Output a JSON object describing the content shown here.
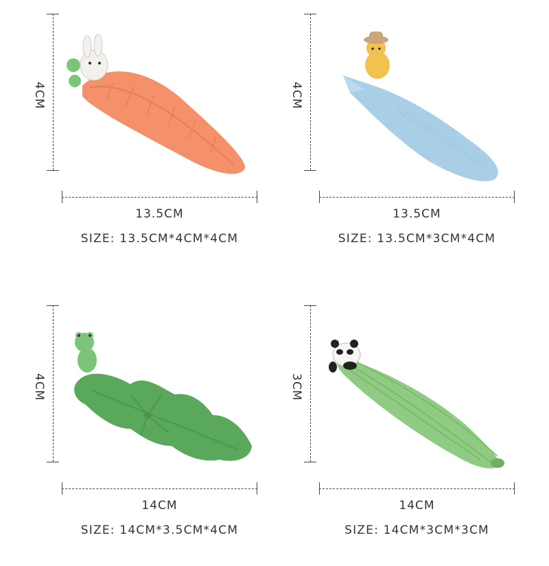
{
  "panels": [
    {
      "product": "carrot-tray-with-rabbit",
      "height_label": "4CM",
      "length_label": "13.5CM",
      "size_label": "SIZE: 13.5CM*4CM*4CM",
      "colors": {
        "body": "#f4906a",
        "accent": "#7cc47a"
      }
    },
    {
      "product": "fish-tray-with-cat",
      "height_label": "4CM",
      "length_label": "13.5CM",
      "size_label": "SIZE: 13.5CM*3CM*4CM",
      "colors": {
        "body": "#a9cfe6",
        "accent": "#f2c14e"
      }
    },
    {
      "product": "lotus-leaf-tray-with-frog",
      "height_label": "4CM",
      "length_label": "14CM",
      "size_label": "SIZE: 14CM*3.5CM*4CM",
      "colors": {
        "body": "#5aa85c",
        "accent": "#7cc47a"
      }
    },
    {
      "product": "leaf-tray-with-panda",
      "height_label": "3CM",
      "length_label": "14CM",
      "size_label": "SIZE: 14CM*3CM*3CM",
      "colors": {
        "body": "#8fcb82",
        "accent": "#222222"
      }
    }
  ]
}
